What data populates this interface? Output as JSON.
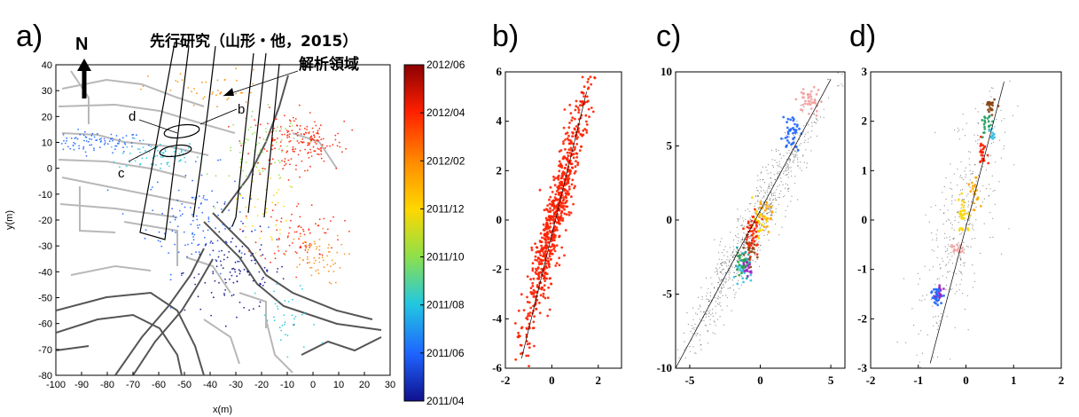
{
  "chart_data": [
    {
      "panel": "a)",
      "type": "scatter",
      "north_label": "N",
      "annotations": {
        "previous_study": "先行研究（山形・他，2015）",
        "analysis_area": "解析領域",
        "section_labels": [
          "d",
          "b",
          "c"
        ]
      },
      "xlabel": "x(m)",
      "ylabel": "y(m)",
      "xlim": [
        -100,
        30
      ],
      "ylim": [
        -80,
        40
      ],
      "xticks": [
        -100,
        -90,
        -80,
        -70,
        -60,
        -50,
        -40,
        -30,
        -20,
        -10,
        0,
        10,
        20,
        30
      ],
      "yticks": [
        40,
        30,
        20,
        10,
        0,
        -10,
        -20,
        -30,
        -40,
        -50,
        -60,
        -70,
        -80
      ],
      "colorbar": {
        "labels": [
          "2012/06",
          "2012/04",
          "2012/02",
          "2011/12",
          "2011/10",
          "2011/08",
          "2011/06",
          "2011/04"
        ],
        "colors": [
          "#8b0000",
          "#ff2000",
          "#ff8c00",
          "#ffd700",
          "#8ee04a",
          "#22c8e0",
          "#1e64ff",
          "#10108c"
        ]
      },
      "clusters": [
        {
          "x": -85,
          "y": 10,
          "sx": 10,
          "sy": 2,
          "color": "#1e64ff",
          "n": 90
        },
        {
          "x": -60,
          "y": 5,
          "sx": 8,
          "sy": 3,
          "color": "#22c8e0",
          "n": 70
        },
        {
          "x": -45,
          "y": -20,
          "sx": 10,
          "sy": 10,
          "color": "#1e64ff",
          "n": 120
        },
        {
          "x": -30,
          "y": -40,
          "sx": 10,
          "sy": 8,
          "color": "#10108c",
          "n": 110
        },
        {
          "x": -20,
          "y": 5,
          "sx": 8,
          "sy": 8,
          "color": "#8ee04a",
          "n": 70
        },
        {
          "x": -10,
          "y": 10,
          "sx": 8,
          "sy": 6,
          "color": "#ff2000",
          "n": 110
        },
        {
          "x": 0,
          "y": 10,
          "sx": 6,
          "sy": 4,
          "color": "#ff2000",
          "n": 80
        },
        {
          "x": -5,
          "y": -25,
          "sx": 8,
          "sy": 6,
          "color": "#ff2000",
          "n": 80
        },
        {
          "x": 0,
          "y": -35,
          "sx": 6,
          "sy": 5,
          "color": "#ff8c00",
          "n": 60
        },
        {
          "x": -20,
          "y": -15,
          "sx": 5,
          "sy": 8,
          "color": "#ffd700",
          "n": 40
        },
        {
          "x": -40,
          "y": 30,
          "sx": 12,
          "sy": 4,
          "color": "#ff8c00",
          "n": 40
        },
        {
          "x": -10,
          "y": -60,
          "sx": 6,
          "sy": 8,
          "color": "#22c8e0",
          "n": 35
        }
      ]
    },
    {
      "panel": "b)",
      "type": "scatter",
      "xlim": [
        -2,
        3
      ],
      "ylim": [
        -6,
        6
      ],
      "xticks": [
        -2,
        0,
        2
      ],
      "yticks": [
        6,
        4,
        2,
        0,
        -2,
        -4,
        -6
      ],
      "fit_line": [
        [
          -1.3,
          -5.6
        ],
        [
          1.5,
          5.2
        ]
      ],
      "clusters": [
        {
          "x": 0.1,
          "y": 0.0,
          "sx": 0.25,
          "sy": 2.8,
          "color": "#ff2000",
          "n": 700
        }
      ]
    },
    {
      "panel": "c)",
      "type": "scatter",
      "xlim": [
        -6,
        6
      ],
      "ylim": [
        -10,
        10
      ],
      "xticks": [
        -5,
        0,
        5
      ],
      "yticks": [
        10,
        5,
        0,
        -5,
        -10
      ],
      "fit_line": [
        [
          -6,
          -10
        ],
        [
          5,
          9.5
        ]
      ],
      "clusters": [
        {
          "x": -0.5,
          "y": -0.5,
          "sx": 0.6,
          "sy": 5,
          "color": "#000000",
          "n": 800
        },
        {
          "x": 3.5,
          "y": 8.0,
          "sx": 0.4,
          "sy": 0.5,
          "color": "#f4a0a0",
          "n": 40
        },
        {
          "x": 2.2,
          "y": 6.0,
          "sx": 0.3,
          "sy": 0.6,
          "color": "#1e64ff",
          "n": 40
        },
        {
          "x": 0.3,
          "y": 0.5,
          "sx": 0.3,
          "sy": 0.6,
          "color": "#ffa500",
          "n": 25
        },
        {
          "x": -0.2,
          "y": -0.3,
          "sx": 0.3,
          "sy": 0.6,
          "color": "#ffd700",
          "n": 25
        },
        {
          "x": -0.6,
          "y": -1.0,
          "sx": 0.3,
          "sy": 0.8,
          "color": "#ff2000",
          "n": 50
        },
        {
          "x": -0.8,
          "y": -2.0,
          "sx": 0.3,
          "sy": 0.5,
          "color": "#8b4513",
          "n": 20
        },
        {
          "x": -1.2,
          "y": -3.0,
          "sx": 0.3,
          "sy": 0.4,
          "color": "#22a0a0",
          "n": 20
        },
        {
          "x": -1.3,
          "y": -3.6,
          "sx": 0.3,
          "sy": 0.4,
          "color": "#40c0e0",
          "n": 20
        },
        {
          "x": -1.0,
          "y": -3.4,
          "sx": 0.2,
          "sy": 0.3,
          "color": "#a020c0",
          "n": 15
        },
        {
          "x": -1.4,
          "y": -3.0,
          "sx": 0.2,
          "sy": 0.3,
          "color": "#20a040",
          "n": 15
        }
      ]
    },
    {
      "panel": "d)",
      "type": "scatter",
      "xlim": [
        -2,
        2
      ],
      "ylim": [
        -3,
        3
      ],
      "xticks": [
        -2,
        -1,
        0,
        1,
        2
      ],
      "yticks": [
        3,
        2,
        1,
        0,
        -1,
        -2,
        -3
      ],
      "fit_line": [
        [
          -0.75,
          -2.9
        ],
        [
          0.8,
          2.8
        ]
      ],
      "clusters": [
        {
          "x": -0.1,
          "y": 0.0,
          "sx": 0.3,
          "sy": 1.3,
          "color": "#000000",
          "n": 350
        },
        {
          "x": 0.5,
          "y": 2.3,
          "sx": 0.05,
          "sy": 0.1,
          "color": "#8b4513",
          "n": 25
        },
        {
          "x": 0.45,
          "y": 1.9,
          "sx": 0.06,
          "sy": 0.12,
          "color": "#20a060",
          "n": 20
        },
        {
          "x": 0.5,
          "y": 1.7,
          "sx": 0.05,
          "sy": 0.1,
          "color": "#40c0e0",
          "n": 12
        },
        {
          "x": 0.35,
          "y": 1.4,
          "sx": 0.05,
          "sy": 0.12,
          "color": "#ff2000",
          "n": 25
        },
        {
          "x": 0.2,
          "y": 0.5,
          "sx": 0.06,
          "sy": 0.15,
          "color": "#ffa500",
          "n": 20
        },
        {
          "x": -0.05,
          "y": 0.1,
          "sx": 0.08,
          "sy": 0.2,
          "color": "#ffd700",
          "n": 30
        },
        {
          "x": -0.2,
          "y": -0.6,
          "sx": 0.06,
          "sy": 0.06,
          "color": "#f4a0a0",
          "n": 15
        },
        {
          "x": -0.6,
          "y": -1.5,
          "sx": 0.06,
          "sy": 0.1,
          "color": "#1e64ff",
          "n": 30
        },
        {
          "x": -0.55,
          "y": -1.45,
          "sx": 0.05,
          "sy": 0.08,
          "color": "#a020c0",
          "n": 10
        }
      ]
    }
  ]
}
